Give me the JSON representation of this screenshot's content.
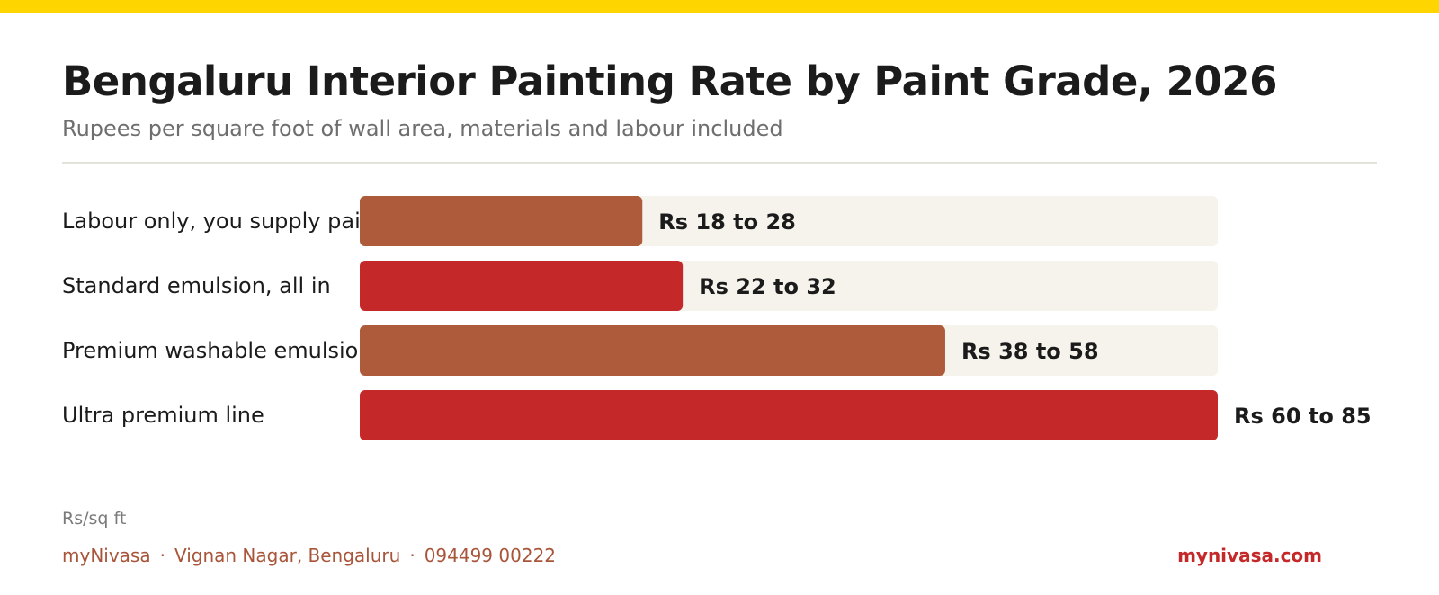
{
  "brand": {
    "accent": "#FFD500",
    "bar_colors": [
      "#AD5B3A",
      "#C42828"
    ],
    "track_color": "#F6F3EC",
    "footer_color": "#A8553A",
    "site_color": "#C42828"
  },
  "chart_data": {
    "type": "bar",
    "orientation": "horizontal",
    "title": "Bengaluru Interior Painting Rate by Paint Grade, 2026",
    "subtitle": "Rupees per square foot of wall area, materials and labour included",
    "unit_label": "Rs/sq ft",
    "xlim": [
      0,
      85
    ],
    "grid": false,
    "legend": "none",
    "categories": [
      "Labour only, you supply paint",
      "Standard emulsion, all in",
      "Premium washable emulsion",
      "Ultra premium line"
    ],
    "series": [
      {
        "low": [
          18,
          22,
          38,
          60
        ],
        "values": [
          28,
          32,
          58,
          85
        ],
        "labels": [
          "Rs 18 to 28",
          "Rs 22 to 32",
          "Rs 38 to 58",
          "Rs 60 to 85"
        ]
      }
    ]
  },
  "footer": {
    "brand_name": "myNivasa",
    "location": "Vignan Nagar, Bengaluru",
    "phone": "094499 00222",
    "separator": "·",
    "website": "mynivasa.com"
  }
}
